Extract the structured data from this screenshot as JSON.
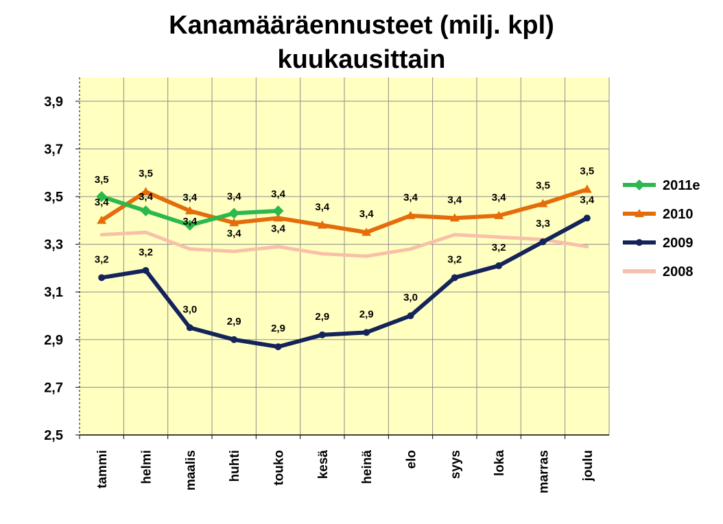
{
  "chart_data": {
    "type": "line",
    "title_line1": "Kanamääräennusteet (milj. kpl)",
    "title_line2": "kuukausittain",
    "categories": [
      "tammi",
      "helmi",
      "maalis",
      "huhti",
      "touko",
      "kesä",
      "heinä",
      "elo",
      "syys",
      "loka",
      "marras",
      "joulu"
    ],
    "ylim": [
      2.5,
      4.0
    ],
    "yticks": [
      "2,5",
      "2,7",
      "2,9",
      "3,1",
      "3,3",
      "3,5",
      "3,7",
      "3,9"
    ],
    "ytick_values": [
      2.5,
      2.7,
      2.9,
      3.1,
      3.3,
      3.5,
      3.7,
      3.9
    ],
    "grid": true,
    "legend_position": "right",
    "plot_background": "#ffffc0",
    "series": [
      {
        "name": "2011e",
        "color": "#2db84d",
        "marker": "diamond",
        "values": [
          3.5,
          3.44,
          3.38,
          3.43,
          3.44,
          null,
          null,
          null,
          null,
          null,
          null,
          null
        ],
        "labels": [
          "3,5",
          "3,4",
          "3,4",
          "3,4",
          "3,4",
          "",
          "",
          "",
          "",
          "",
          "",
          ""
        ]
      },
      {
        "name": "2010",
        "color": "#e46c0a",
        "marker": "triangle",
        "values": [
          3.4,
          3.52,
          3.44,
          3.39,
          3.41,
          3.38,
          3.35,
          3.42,
          3.41,
          3.42,
          3.47,
          3.53
        ],
        "labels": [
          "3,4",
          "3,5",
          "3,4",
          "3,4",
          "3,4",
          "3,4",
          "3,4",
          "3,4",
          "3,4",
          "3,4",
          "3,5",
          "3,5"
        ]
      },
      {
        "name": "2009",
        "color": "#14235a",
        "marker": "circle",
        "values": [
          3.16,
          3.19,
          2.95,
          2.9,
          2.87,
          2.92,
          2.93,
          3.0,
          3.16,
          3.21,
          3.31,
          3.41
        ],
        "labels": [
          "3,2",
          "3,2",
          "3,0",
          "2,9",
          "2,9",
          "2,9",
          "2,9",
          "3,0",
          "3,2",
          "3,2",
          "3,3",
          "3,4"
        ]
      },
      {
        "name": "2008",
        "color": "#f9c0a8",
        "marker": "none",
        "values": [
          3.34,
          3.35,
          3.28,
          3.27,
          3.29,
          3.26,
          3.25,
          3.28,
          3.34,
          3.33,
          3.32,
          3.29
        ],
        "labels": [
          "",
          "",
          "",
          "",
          "",
          "",
          "",
          "",
          "",
          "",
          "",
          ""
        ]
      }
    ]
  }
}
